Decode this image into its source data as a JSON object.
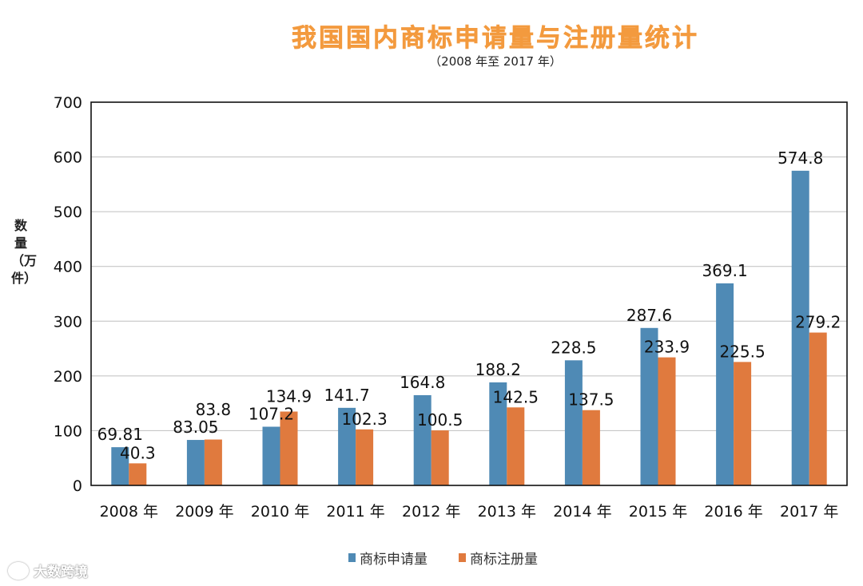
{
  "chart_data": {
    "type": "bar",
    "title": "我国国内商标申请量与注册量统计",
    "subtitle": "（2008 年至 2017 年）",
    "ylabel": "数量（万件）",
    "xlabel": "",
    "categories": [
      "2008 年",
      "2009 年",
      "2010 年",
      "2011 年",
      "2012 年",
      "2013 年",
      "2014 年",
      "2015 年",
      "2016 年",
      "2017 年"
    ],
    "series": [
      {
        "name": "商标申请量",
        "color": "#4f8ab5",
        "values": [
          69.81,
          83.05,
          107.2,
          141.7,
          164.8,
          188.2,
          228.5,
          287.6,
          369.1,
          574.8
        ],
        "labels": [
          "69.81",
          "83.05",
          "107.2",
          "141.7",
          "164.8",
          "188.2",
          "228.5",
          "287.6",
          "369.1",
          "574.8"
        ]
      },
      {
        "name": "商标注册量",
        "color": "#e07a3e",
        "values": [
          40.3,
          83.8,
          134.9,
          102.3,
          100.5,
          142.5,
          137.5,
          233.9,
          225.5,
          279.2
        ],
        "labels": [
          "40.3",
          "83.8",
          "134.9",
          "102.3",
          "100.5",
          "142.5",
          "137.5",
          "233.9",
          "225.5",
          "279.2"
        ]
      }
    ],
    "ylim": [
      0,
      700
    ],
    "yticks": [
      0,
      100,
      200,
      300,
      400,
      500,
      600,
      700
    ],
    "grid": true,
    "legend_position": "bottom-center"
  },
  "watermark": {
    "text": "大数跨境"
  }
}
